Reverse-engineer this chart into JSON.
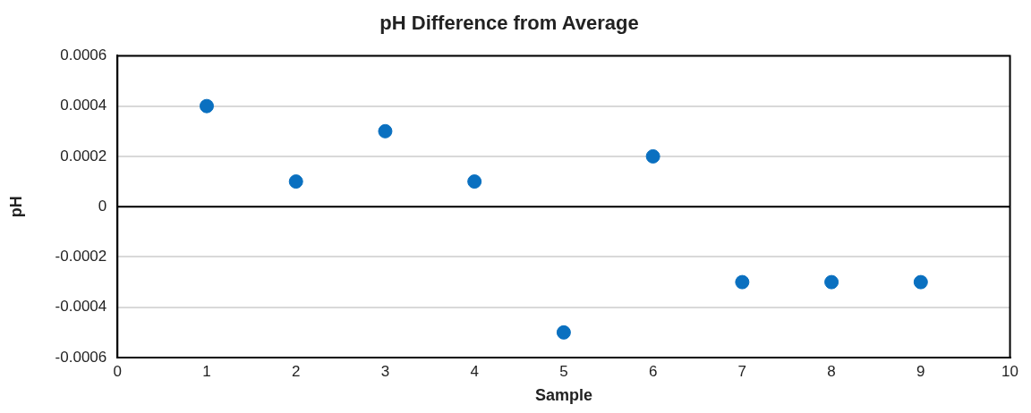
{
  "chart_data": {
    "type": "scatter",
    "title": "pH Difference from Average",
    "xlabel": "Sample",
    "ylabel": "pH",
    "x": [
      1,
      2,
      3,
      4,
      5,
      6,
      7,
      8,
      9
    ],
    "series": [
      {
        "color": "#0a70c0",
        "values": [
          0.0004,
          0.0001,
          0.0003,
          0.0001,
          -0.0005,
          0.0002,
          -0.0003,
          -0.0003,
          -0.0003
        ]
      }
    ],
    "xlim": [
      0,
      10
    ],
    "xticks": [
      0,
      1,
      2,
      3,
      4,
      5,
      6,
      7,
      8,
      9,
      10
    ],
    "ylim": [
      -0.0006,
      0.0006
    ],
    "yticks": [
      -0.0006,
      -0.0004,
      -0.0002,
      0,
      0.0002,
      0.0004,
      0.0006
    ],
    "ref_lines": [
      {
        "axis": "y",
        "value": 0,
        "color": "#000000"
      }
    ],
    "grid": "y",
    "marker": "circle",
    "legend": false
  }
}
